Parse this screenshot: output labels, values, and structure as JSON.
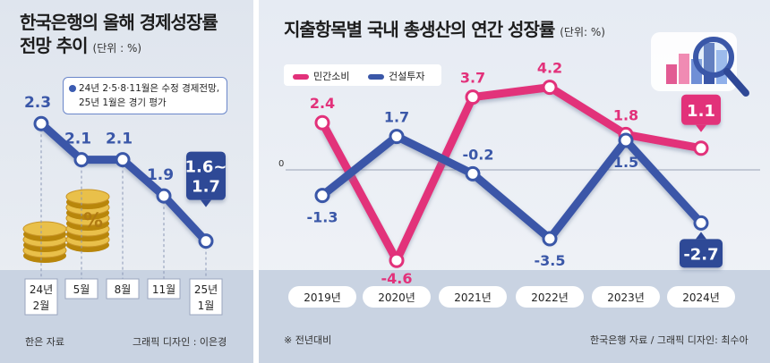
{
  "left": {
    "title_line1": "한국은행의 올해 경제성장률",
    "title_line2": "전망 추이",
    "unit": "(단위 : %)",
    "note_line1": "24년 2·5·8·11월은 수정 경제전망,",
    "note_line2": "25년 1월은 경기 평가",
    "source": "한은 자료",
    "designer": "그래픽 디자인 : 이은경",
    "coin_symbol": "%"
  },
  "right": {
    "title": "지출항목별 국내 총생산의 연간 성장률",
    "unit": "(단위: %)",
    "zero_label": "0",
    "footnote": "※ 전년대비",
    "source": "한국은행 자료 / 그래픽 디자인: 최수아"
  },
  "colors": {
    "blue_line": "#3a57a8",
    "pink_line": "#e2317a",
    "navy_box": "#2f4896",
    "bg": "#e4e9f1"
  },
  "chart_data": [
    {
      "type": "line",
      "title": "한국은행의 올해 경제성장률 전망 추이",
      "unit": "(단위 : %)",
      "categories": [
        "24년 2월",
        "5월",
        "8월",
        "11월",
        "25년 1월"
      ],
      "series": [
        {
          "values": [
            2.3,
            2.1,
            2.1,
            1.9,
            1.65
          ]
        }
      ],
      "data_labels": [
        "2.3",
        "2.1",
        "2.1",
        "1.9",
        "1.6~ 1.7"
      ],
      "ylim": [
        1.5,
        2.4
      ],
      "grid": false
    },
    {
      "type": "line",
      "title": "지출항목별 국내 총생산의 연간 성장률",
      "unit": "(단위: %)",
      "categories": [
        "2019년",
        "2020년",
        "2021년",
        "2022년",
        "2023년",
        "2024년"
      ],
      "series": [
        {
          "name": "민간소비",
          "color": "#e2317a",
          "values": [
            2.4,
            -4.6,
            3.7,
            4.2,
            1.8,
            1.1
          ]
        },
        {
          "name": "건설투자",
          "color": "#3a57a8",
          "values": [
            -1.3,
            1.7,
            -0.2,
            -3.5,
            1.5,
            -2.7
          ]
        }
      ],
      "ylim": [
        -5,
        5
      ],
      "legend": "top-left",
      "grid": false
    }
  ]
}
